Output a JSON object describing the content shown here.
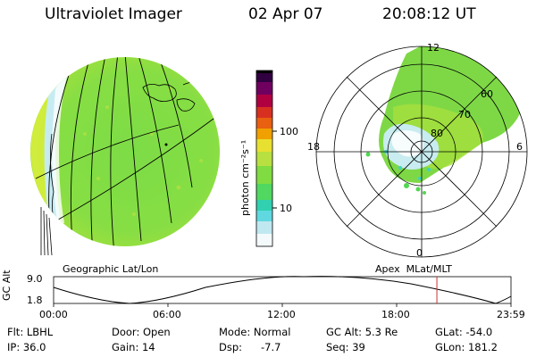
{
  "header": {
    "instrument": "Ultraviolet Imager",
    "date": "02 Apr 07",
    "time": "20:08:12 UT"
  },
  "colorbar": {
    "unit_label": "photon cm⁻²s⁻¹",
    "ticks": [
      "100",
      "10"
    ],
    "colors": [
      "#ffffff",
      "#c8e8f0",
      "#40d0d0",
      "#60e060",
      "#a0e040",
      "#e0f040",
      "#f0a000",
      "#e04020",
      "#c00030",
      "#600060",
      "#000000"
    ]
  },
  "left_panel": {
    "label": "Geographic Lat/Lon"
  },
  "right_panel": {
    "label": "Apex  MLat/MLT",
    "mlt_labels": {
      "top": "12",
      "left": "18",
      "right": "6",
      "bottom": "0"
    },
    "mlat_labels": [
      "60",
      "70",
      "80"
    ]
  },
  "timeline": {
    "ylabel": "GC Alt",
    "yticks": [
      "9.0",
      "1.8"
    ],
    "xticks": [
      "00:00",
      "06:00",
      "12:00",
      "18:00",
      "23:59"
    ],
    "current_time_fraction": 0.838
  },
  "info": {
    "row1": {
      "filter": "Flt: LBHL",
      "door": "Door: Open",
      "mode": "Mode: Normal",
      "gc_alt": "GC Alt: 5.3 Re",
      "glat": "GLat: -54.0"
    },
    "row2": {
      "ip": "IP: 36.0",
      "gain": "Gain: 14",
      "dsp_label": "Dsp:",
      "dsp_value": "-7.7",
      "seq": "Seq: 39",
      "glon": "GLon: 181.2"
    }
  }
}
